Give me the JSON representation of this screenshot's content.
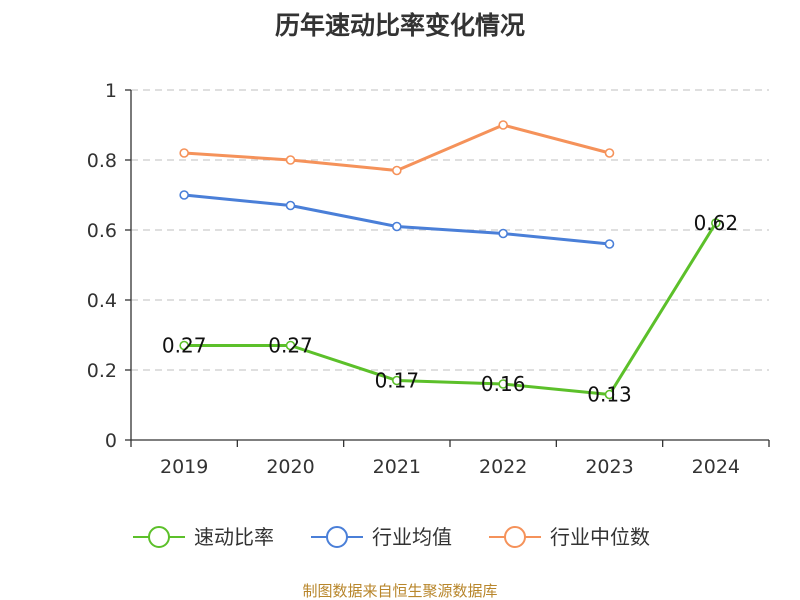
{
  "chart_data": {
    "type": "line",
    "title": "历年速动比率变化情况",
    "categories": [
      "2019",
      "2020",
      "2021",
      "2022",
      "2023",
      "2024"
    ],
    "ylim": [
      0,
      1
    ],
    "yticks": [
      "0",
      "0.2",
      "0.4",
      "0.6",
      "0.8",
      "1"
    ],
    "grid": true,
    "legend_position": "bottom",
    "series": [
      {
        "name": "速动比率",
        "color": "#5cc02a",
        "values": [
          0.27,
          0.27,
          0.17,
          0.16,
          0.13,
          0.62
        ],
        "labels": [
          "0.27",
          "0.27",
          "0.17",
          "0.16",
          "0.13",
          "0.62"
        ]
      },
      {
        "name": "行业均值",
        "color": "#4a7fd8",
        "values": [
          0.7,
          0.67,
          0.61,
          0.59,
          0.56,
          null
        ]
      },
      {
        "name": "行业中位数",
        "color": "#f5925a",
        "values": [
          0.82,
          0.8,
          0.77,
          0.9,
          0.82,
          null
        ]
      }
    ]
  },
  "source": "制图数据来自恒生聚源数据库"
}
